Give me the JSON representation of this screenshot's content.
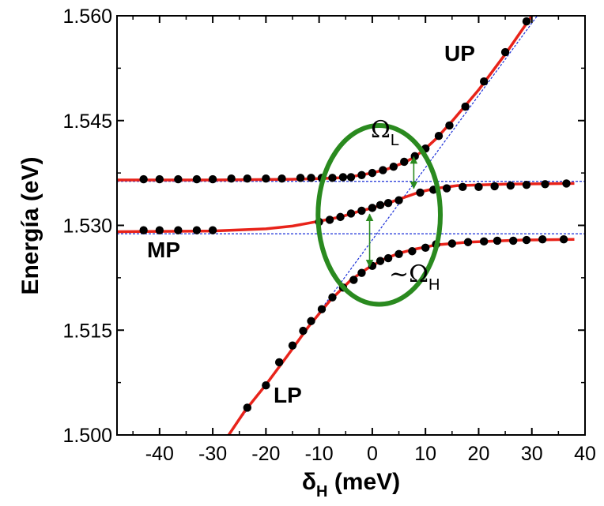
{
  "colors": {
    "fit_curve": "#e8231a",
    "data_point": "#000000",
    "guide_line": "#1a2fd8",
    "ellipse": "#2a8a1f",
    "arrow": "#2a8a1f"
  },
  "chart_data": {
    "type": "scatter",
    "title": "",
    "xlabel": "δH (meV)",
    "xlabel_parts": {
      "main": "δ",
      "sub": "H",
      "unit": " (meV)"
    },
    "ylabel": "Energía (eV)",
    "xlim": [
      -48,
      40
    ],
    "ylim": [
      1.5,
      1.56
    ],
    "x_ticks": [
      -40,
      -30,
      -20,
      -10,
      0,
      10,
      20,
      30,
      40
    ],
    "x_tick_labels": [
      "-40",
      "-30",
      "-20",
      "-10",
      "0",
      "10",
      "20",
      "30",
      "40"
    ],
    "y_ticks": [
      1.5,
      1.515,
      1.53,
      1.545,
      1.56
    ],
    "y_tick_labels": [
      "1.500",
      "1.515",
      "1.530",
      "1.545",
      "1.560"
    ],
    "grid": false,
    "legend": "none",
    "branch_labels": {
      "up": "UP",
      "mp": "MP",
      "lp": "LP"
    },
    "annotations": {
      "omega_l": {
        "prefix": "",
        "symbol": "Ω",
        "sub": "L"
      },
      "omega_h": {
        "prefix": "~",
        "symbol": "Ω",
        "sub": "H"
      }
    },
    "guide_lines": {
      "diagonal": {
        "x0": -27,
        "y0": 1.5,
        "x1": 31.5,
        "y1": 1.5605
      },
      "horizontal_upper": 1.5363,
      "horizontal_lower": 1.5288
    },
    "ellipse": {
      "cx": 1.3,
      "cy": 1.5315,
      "rx": 11.5,
      "ry": 0.0128
    },
    "arrows": [
      {
        "x": 7.8,
        "y_from": 1.5353,
        "y_to": 1.5398
      },
      {
        "x": -0.5,
        "y_from": 1.5241,
        "y_to": 1.5316
      }
    ],
    "series": [
      {
        "role": "upper_polariton",
        "points": [
          [
            -43,
            1.5366
          ],
          [
            -40,
            1.5366
          ],
          [
            -36.5,
            1.5366
          ],
          [
            -33,
            1.5366
          ],
          [
            -30,
            1.5366
          ],
          [
            -26.5,
            1.5367
          ],
          [
            -23.5,
            1.5367
          ],
          [
            -20,
            1.5367
          ],
          [
            -17,
            1.5367
          ],
          [
            -13.5,
            1.5368
          ],
          [
            -11.5,
            1.5368
          ],
          [
            -9.5,
            1.5368
          ],
          [
            -7.5,
            1.5368
          ],
          [
            -5.5,
            1.5369
          ],
          [
            -4,
            1.5369
          ],
          [
            -2,
            1.5372
          ],
          [
            0,
            1.5375
          ],
          [
            2,
            1.5379
          ],
          [
            4,
            1.5384
          ],
          [
            6,
            1.5391
          ],
          [
            8,
            1.5399
          ],
          [
            10,
            1.541
          ],
          [
            12.5,
            1.5428
          ],
          [
            14.5,
            1.5443
          ],
          [
            17.5,
            1.547
          ],
          [
            21,
            1.5506
          ],
          [
            25,
            1.5548
          ],
          [
            29,
            1.5592
          ]
        ],
        "fit": [
          [
            -48,
            1.5365
          ],
          [
            -30,
            1.5365
          ],
          [
            -15,
            1.5366
          ],
          [
            -10,
            1.5367
          ],
          [
            -6,
            1.5368
          ],
          [
            -3,
            1.5371
          ],
          [
            0,
            1.5375
          ],
          [
            3,
            1.5381
          ],
          [
            6,
            1.539
          ],
          [
            8,
            1.5398
          ],
          [
            10,
            1.541
          ],
          [
            12,
            1.5424
          ],
          [
            15,
            1.5449
          ],
          [
            20,
            1.5494
          ],
          [
            25,
            1.5545
          ],
          [
            30,
            1.56
          ]
        ]
      },
      {
        "role": "middle_polariton",
        "points": [
          [
            -43,
            1.5293
          ],
          [
            -40,
            1.5293
          ],
          [
            -36.5,
            1.5293
          ],
          [
            -33,
            1.5293
          ],
          [
            -30,
            1.5293
          ],
          [
            -10,
            1.5305
          ],
          [
            -8,
            1.5308
          ],
          [
            -6,
            1.5312
          ],
          [
            -4,
            1.5317
          ],
          [
            -2,
            1.5321
          ],
          [
            0,
            1.5325
          ],
          [
            1.5,
            1.5329
          ],
          [
            3,
            1.5332
          ],
          [
            5,
            1.5336
          ],
          [
            9,
            1.5347
          ],
          [
            11.5,
            1.5351
          ],
          [
            14,
            1.5353
          ],
          [
            17,
            1.5355
          ],
          [
            20,
            1.5355
          ],
          [
            23,
            1.5356
          ],
          [
            26,
            1.5357
          ],
          [
            29,
            1.5358
          ],
          [
            32.5,
            1.5359
          ],
          [
            36.5,
            1.536
          ]
        ],
        "fit": [
          [
            -48,
            1.5291
          ],
          [
            -30,
            1.5292
          ],
          [
            -20,
            1.5295
          ],
          [
            -15,
            1.5299
          ],
          [
            -10,
            1.5306
          ],
          [
            -6,
            1.5312
          ],
          [
            -3,
            1.5319
          ],
          [
            0,
            1.5325
          ],
          [
            3,
            1.5332
          ],
          [
            6,
            1.534
          ],
          [
            9,
            1.5348
          ],
          [
            12,
            1.5353
          ],
          [
            16,
            1.5357
          ],
          [
            25,
            1.5359
          ],
          [
            38,
            1.536
          ]
        ]
      },
      {
        "role": "lower_polariton",
        "points": [
          [
            -23.5,
            1.5039
          ],
          [
            -20,
            1.5071
          ],
          [
            -17.5,
            1.5104
          ],
          [
            -15,
            1.5128
          ],
          [
            -13,
            1.5149
          ],
          [
            -11.5,
            1.5163
          ],
          [
            -9.5,
            1.518
          ],
          [
            -7.5,
            1.5197
          ],
          [
            -5.5,
            1.5211
          ],
          [
            -3.5,
            1.5222
          ],
          [
            -2,
            1.5232
          ],
          [
            0,
            1.5242
          ],
          [
            1.5,
            1.5249
          ],
          [
            3,
            1.5253
          ],
          [
            5,
            1.5259
          ],
          [
            7.5,
            1.5263
          ],
          [
            10,
            1.5268
          ],
          [
            12,
            1.5273
          ],
          [
            15,
            1.5274
          ],
          [
            18,
            1.5276
          ],
          [
            21,
            1.5277
          ],
          [
            23.5,
            1.5278
          ],
          [
            26.5,
            1.5278
          ],
          [
            29,
            1.5279
          ],
          [
            32,
            1.528
          ],
          [
            36,
            1.528
          ]
        ],
        "fit": [
          [
            -27,
            1.5
          ],
          [
            -24,
            1.5034
          ],
          [
            -20,
            1.5072
          ],
          [
            -16,
            1.5113
          ],
          [
            -12,
            1.5155
          ],
          [
            -8,
            1.5192
          ],
          [
            -4,
            1.5222
          ],
          [
            -1,
            1.5238
          ],
          [
            2,
            1.5251
          ],
          [
            5,
            1.526
          ],
          [
            8,
            1.5266
          ],
          [
            12,
            1.5272
          ],
          [
            18,
            1.5276
          ],
          [
            28,
            1.5279
          ],
          [
            38,
            1.528
          ]
        ]
      }
    ]
  }
}
